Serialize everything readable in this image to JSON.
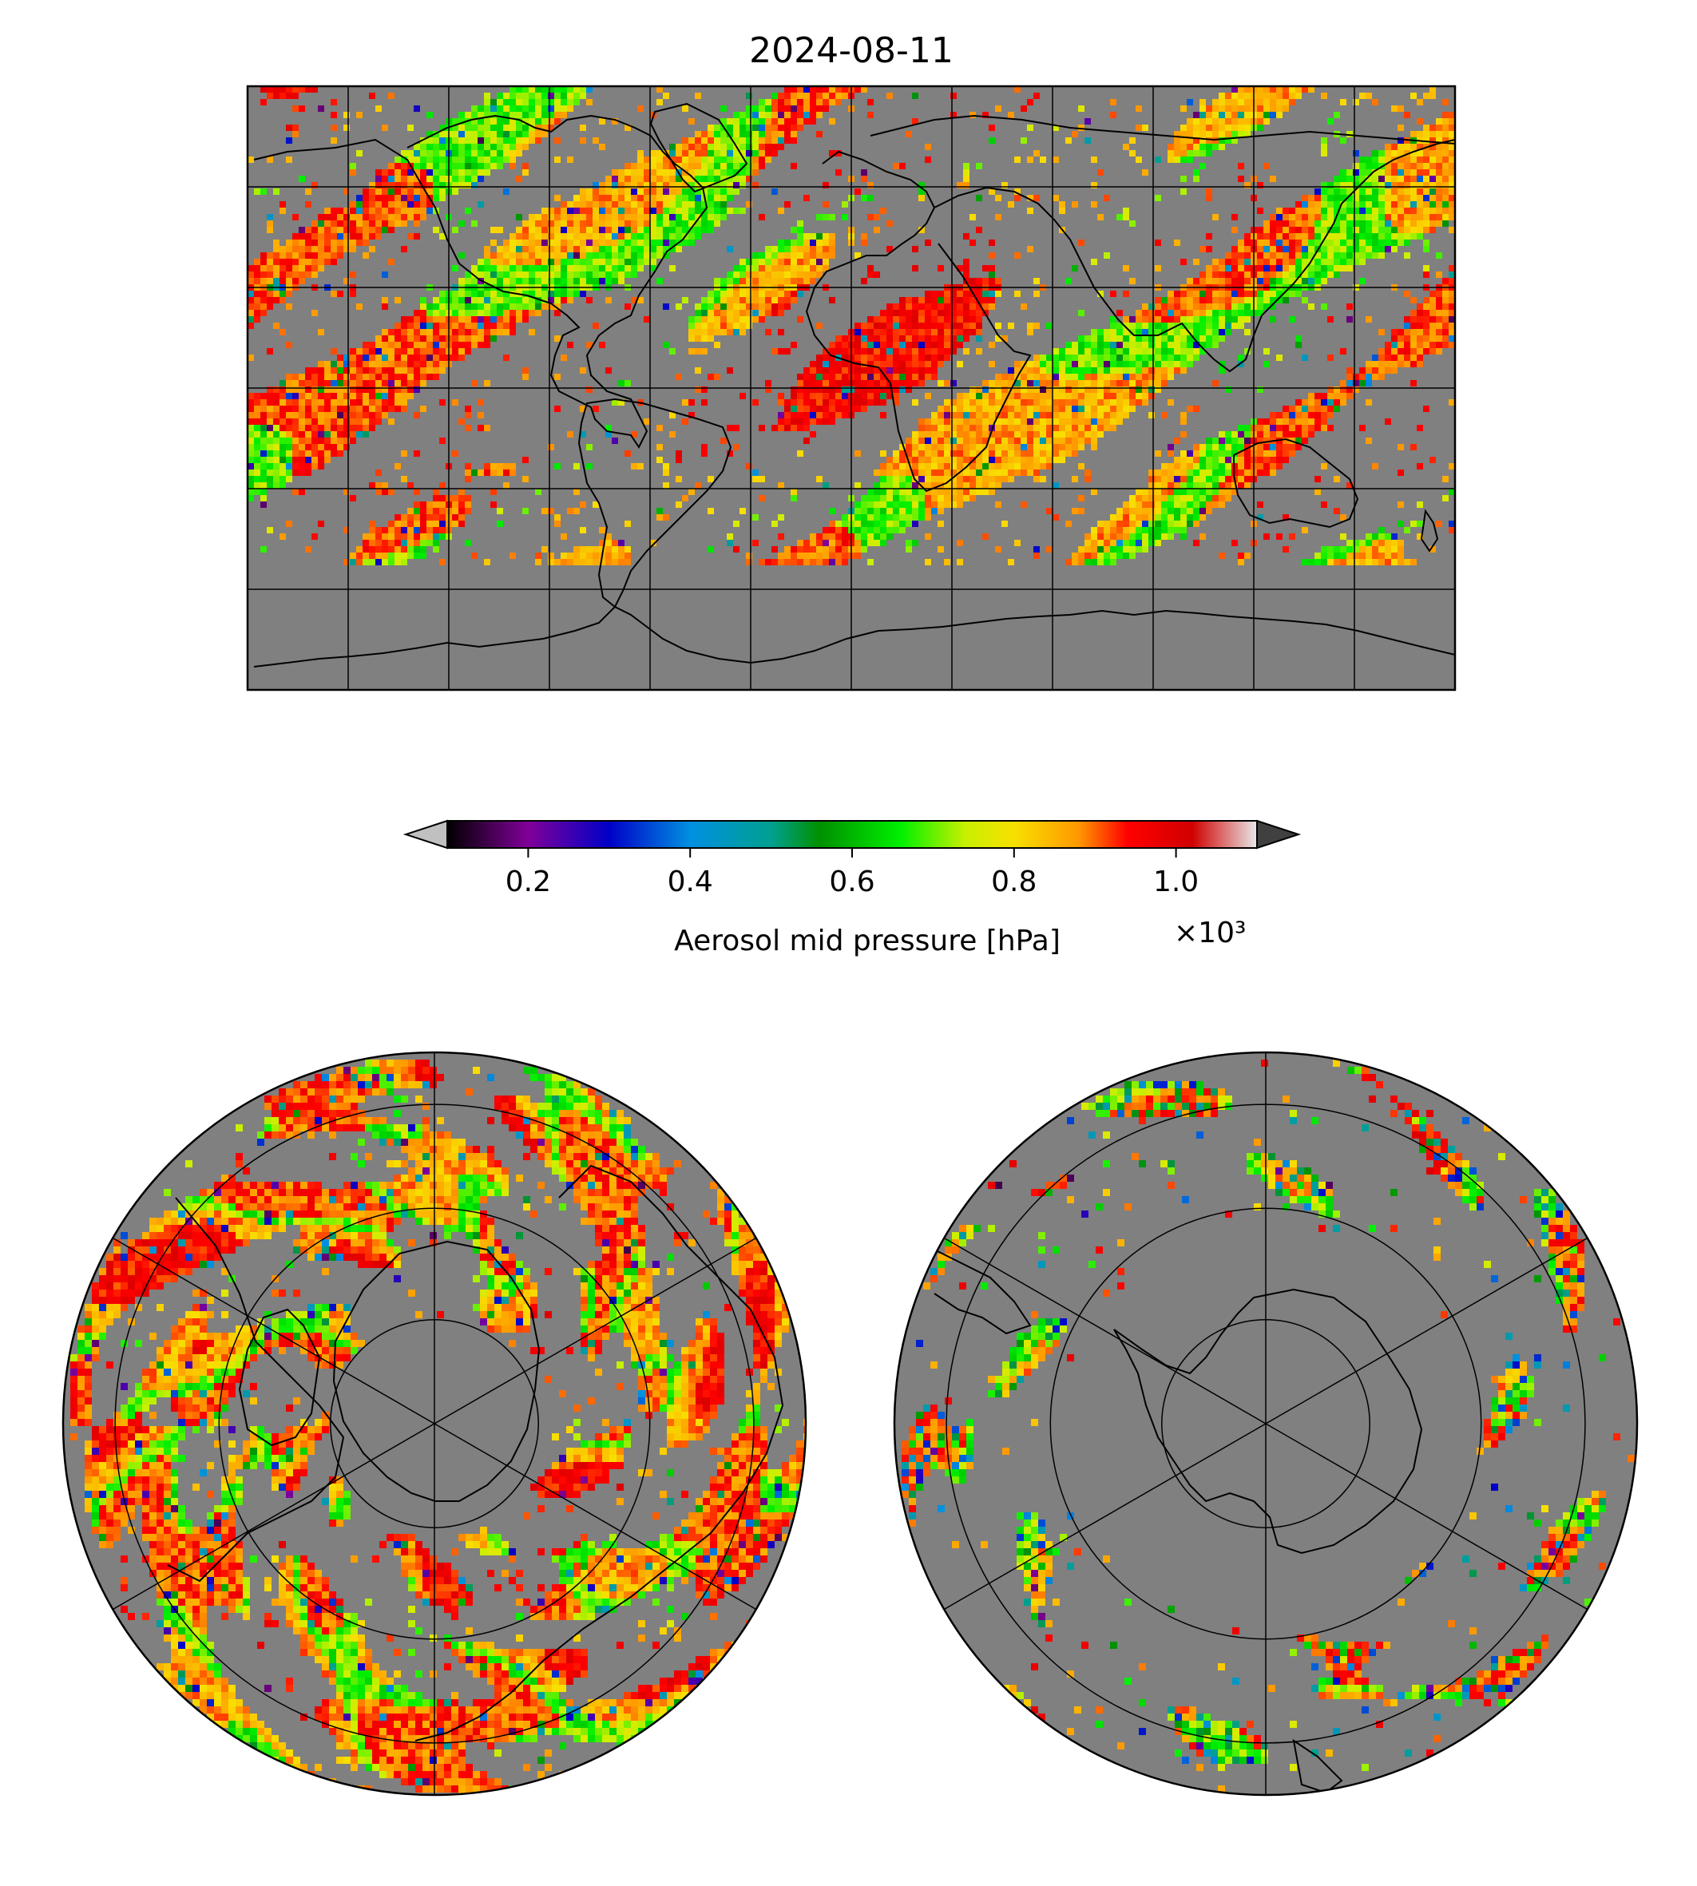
{
  "title": "2024-08-11",
  "colorbar": {
    "label": "Aerosol mid pressure [hPa]",
    "multiplier": "×10³",
    "ticks": [
      {
        "value": 0.2,
        "label": "0.2"
      },
      {
        "value": 0.4,
        "label": "0.4"
      },
      {
        "value": 0.6,
        "label": "0.6"
      },
      {
        "value": 0.8,
        "label": "0.8"
      },
      {
        "value": 1.0,
        "label": "1.0"
      }
    ],
    "range": [
      0.1,
      1.1
    ],
    "extend": "both",
    "under_color": "#c0c0c0",
    "over_color": "#404040",
    "colormap_stops": [
      {
        "value": 0.1,
        "color": "#000000"
      },
      {
        "value": 0.2,
        "color": "#800098"
      },
      {
        "value": 0.3,
        "color": "#0000c8"
      },
      {
        "value": 0.4,
        "color": "#0090e0"
      },
      {
        "value": 0.5,
        "color": "#00a090"
      },
      {
        "value": 0.56,
        "color": "#009000"
      },
      {
        "value": 0.66,
        "color": "#00f000"
      },
      {
        "value": 0.74,
        "color": "#c8f000"
      },
      {
        "value": 0.8,
        "color": "#f8e000"
      },
      {
        "value": 0.88,
        "color": "#ff9800"
      },
      {
        "value": 0.94,
        "color": "#ff0000"
      },
      {
        "value": 1.02,
        "color": "#d00000"
      },
      {
        "value": 1.1,
        "color": "#e8e8e8"
      }
    ]
  },
  "panels": [
    {
      "id": "global",
      "projection": "plate-carree",
      "extent": [
        -180,
        180,
        -90,
        90
      ],
      "gridlines_lon_step": 30,
      "gridlines_lat_step": 30
    },
    {
      "id": "north-polar",
      "projection": "north-polar-stereographic",
      "boundary_lat": 0
    },
    {
      "id": "south-polar",
      "projection": "south-polar-stereographic",
      "boundary_lat": 0
    }
  ],
  "colors": {
    "no_data": "#808080",
    "coastline": "#000000",
    "gridline": "#000000"
  }
}
